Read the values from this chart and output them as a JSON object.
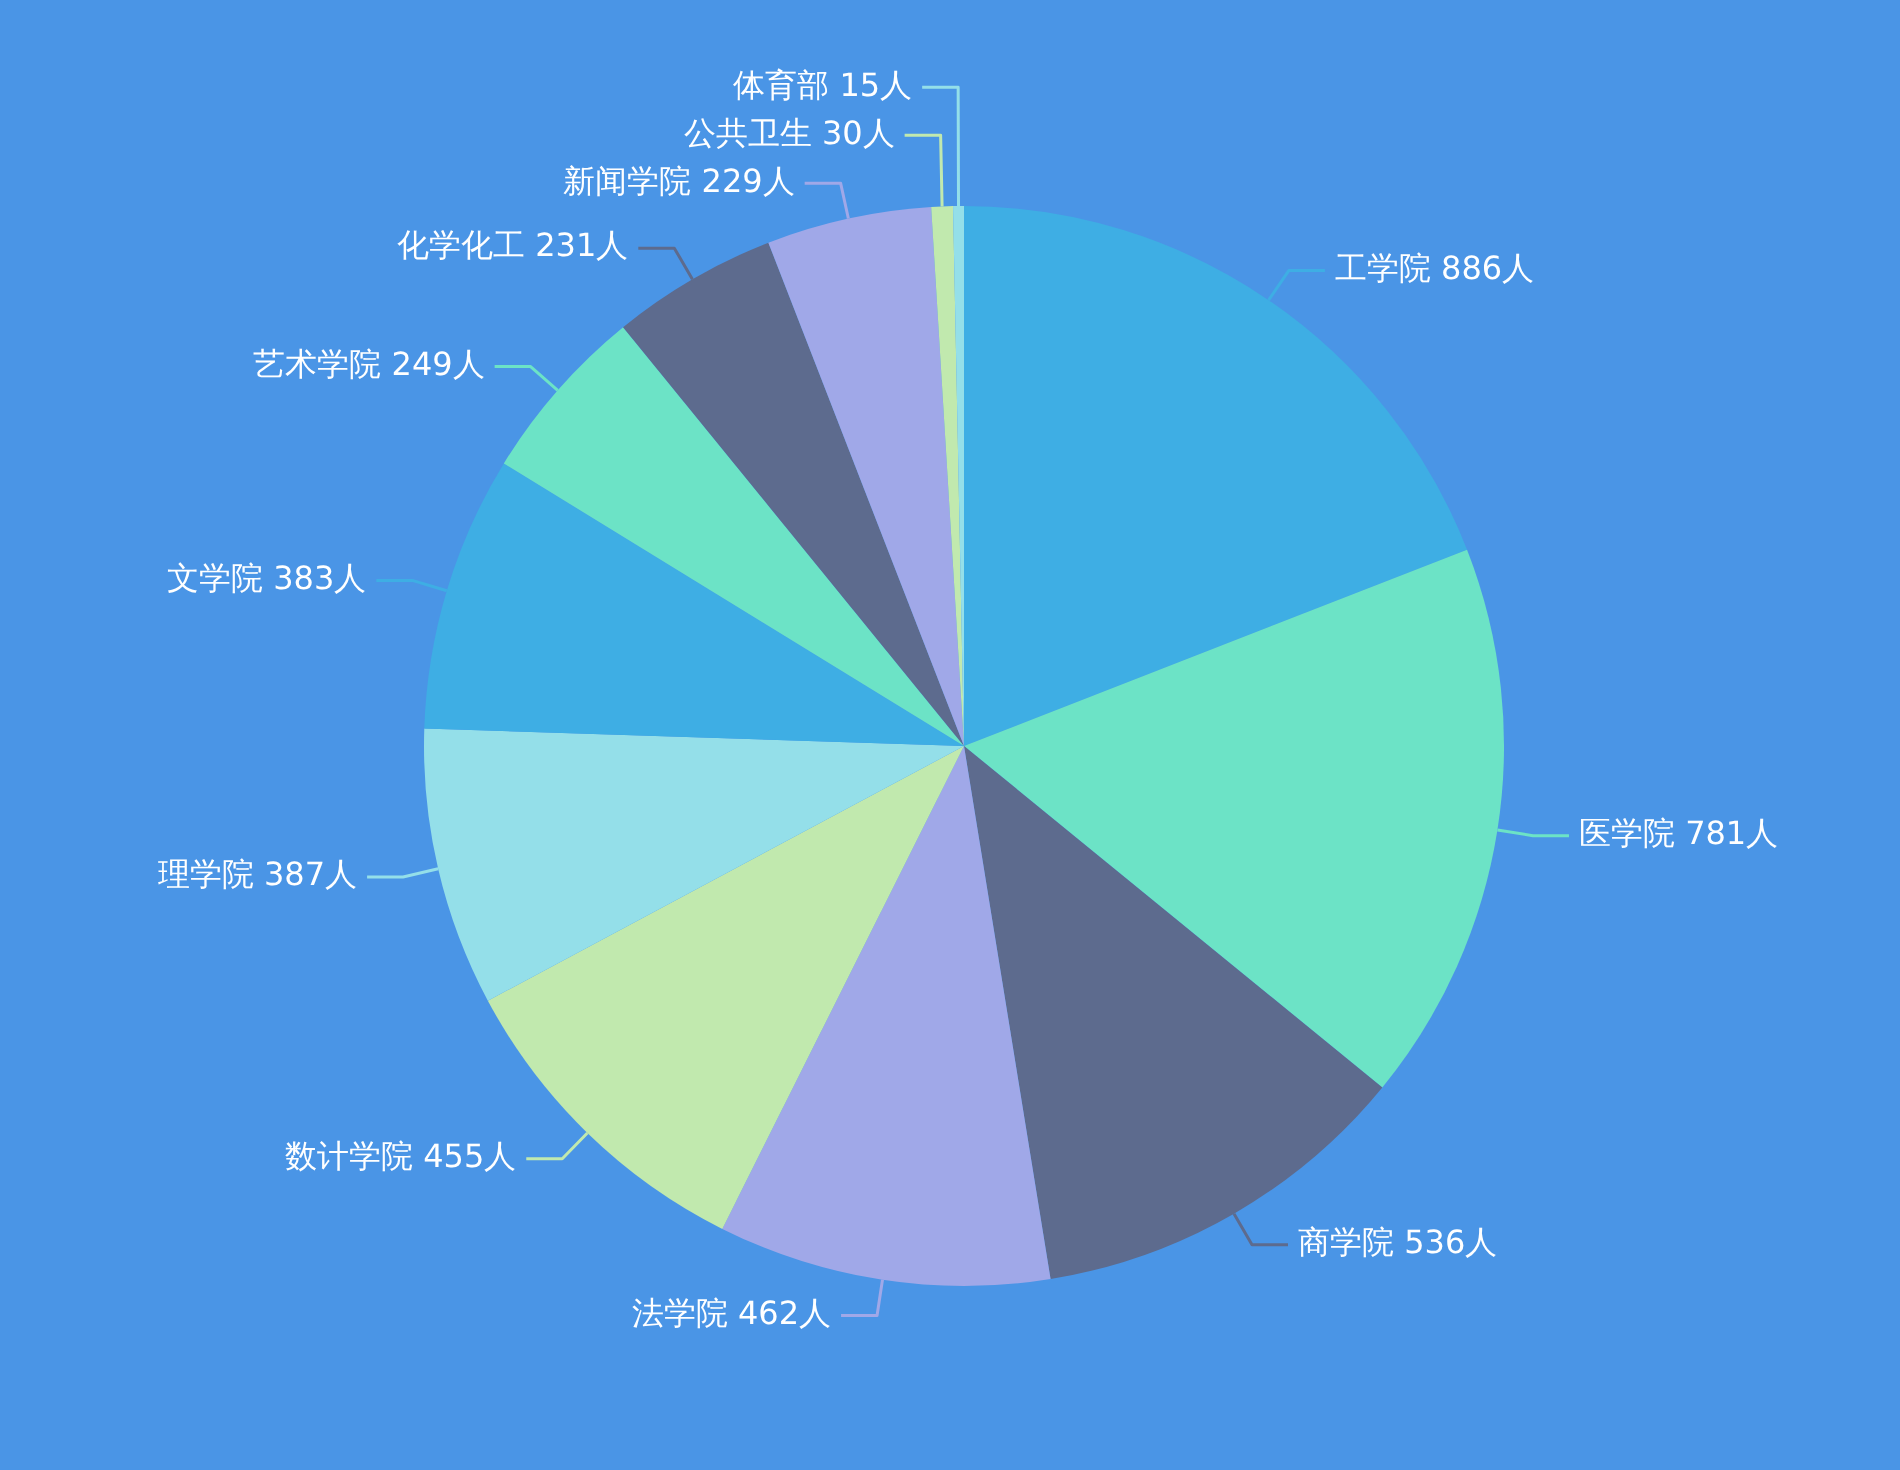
{
  "chart_data": {
    "type": "pie",
    "categories": [
      "工学院",
      "医学院",
      "商学院",
      "法学院",
      "数计学院",
      "理学院",
      "文学院",
      "艺术学院",
      "化学化工",
      "新闻学院",
      "公共卫生",
      "体育部"
    ],
    "values": [
      886,
      781,
      536,
      462,
      455,
      387,
      383,
      249,
      231,
      229,
      30,
      15
    ],
    "value_labels": [
      "886人",
      "781人",
      "536人",
      "462人",
      "455人",
      "387人",
      "383人",
      "249人",
      "231人",
      "229人",
      "30人",
      "15人"
    ],
    "colors": [
      "#3eaee4",
      "#6ce3c6",
      "#5d6b8e",
      "#a0a8e8",
      "#c1e9ae",
      "#94dfe9",
      "#3eaee4",
      "#6ce3c6",
      "#5d6b8e",
      "#a0a8e8",
      "#c1e9ae",
      "#94dfe9"
    ]
  }
}
